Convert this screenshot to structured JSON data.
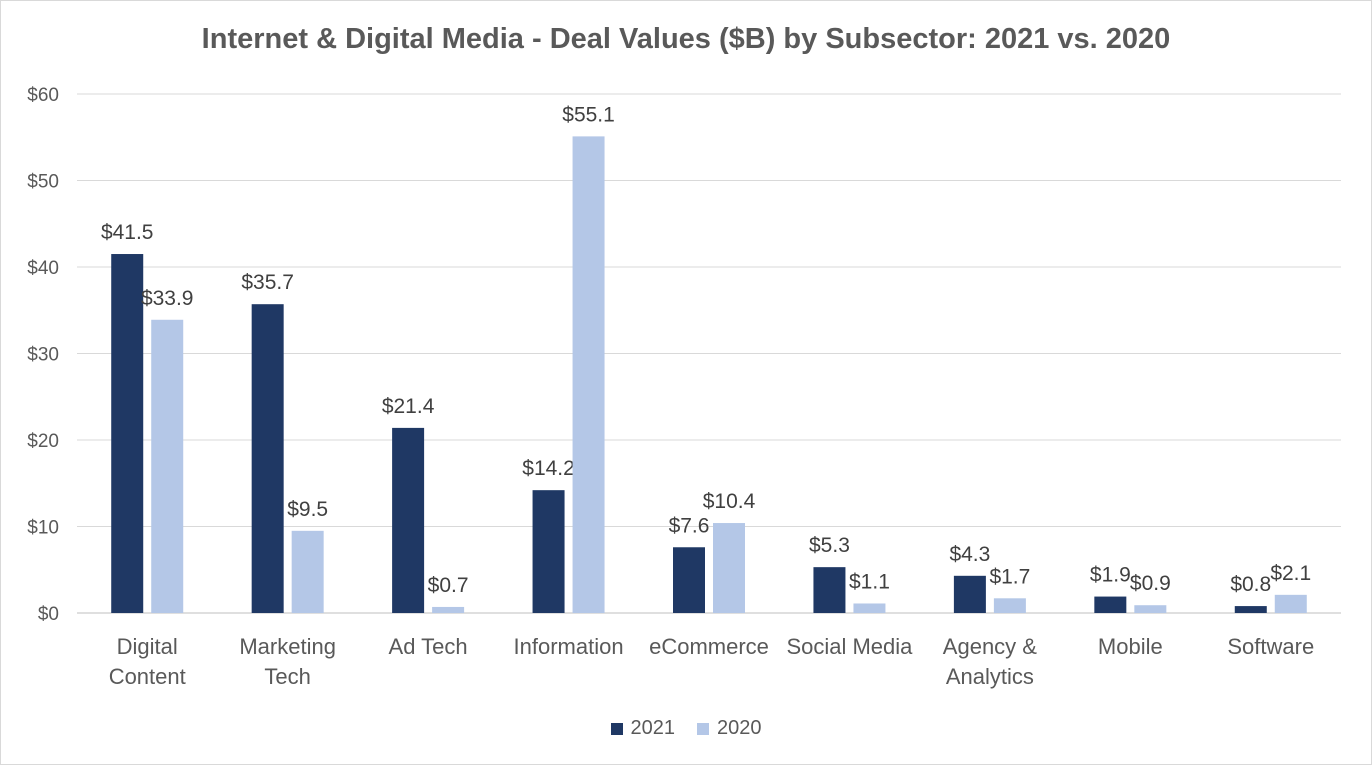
{
  "chart_data": {
    "type": "bar",
    "title": "Internet & Digital Media - Deal Values ($B) by Subsector:  2021 vs. 2020",
    "categories": [
      [
        "Digital",
        "Content"
      ],
      [
        "Marketing",
        "Tech"
      ],
      [
        "Ad Tech"
      ],
      [
        "Information"
      ],
      [
        "eCommerce"
      ],
      [
        "Social Media"
      ],
      [
        "Agency &",
        "Analytics"
      ],
      [
        "Mobile"
      ],
      [
        "Software"
      ]
    ],
    "series": [
      {
        "name": "2021",
        "color": "#1f3864",
        "values": [
          41.5,
          35.7,
          21.4,
          14.2,
          7.6,
          5.3,
          4.3,
          1.9,
          0.8
        ],
        "labels": [
          "$41.5",
          "$35.7",
          "$21.4",
          "$14.2",
          "$7.6",
          "$5.3",
          "$4.3",
          "$1.9",
          "$0.8"
        ]
      },
      {
        "name": "2020",
        "color": "#b4c7e7",
        "values": [
          33.9,
          9.5,
          0.7,
          55.1,
          10.4,
          1.1,
          1.7,
          0.9,
          2.1
        ],
        "labels": [
          "$33.9",
          "$9.5",
          "$0.7",
          "$55.1",
          "$10.4",
          "$1.1",
          "$1.7",
          "$0.9",
          "$2.1"
        ]
      }
    ],
    "ylim": [
      0,
      60
    ],
    "yticks": [
      0,
      10,
      20,
      30,
      40,
      50,
      60
    ],
    "ytick_labels": [
      "$0",
      "$10",
      "$20",
      "$30",
      "$40",
      "$50",
      "$60"
    ],
    "grid": true,
    "legend_position": "bottom"
  }
}
